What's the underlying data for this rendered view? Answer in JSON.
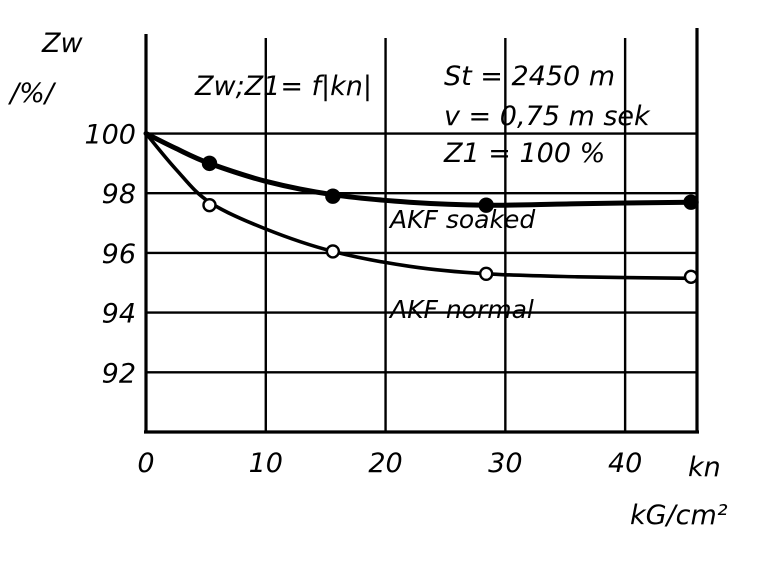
{
  "chart_data": {
    "type": "line",
    "title": "",
    "annotation_lines": [
      "Zw;Z1= f|kn|",
      "St = 2450 m",
      "v = 0,75 m sek",
      "Z1 = 100 %"
    ],
    "ylabel": [
      "Zw",
      "/%/"
    ],
    "xlabel": [
      "kn",
      "kG/cm²"
    ],
    "x_ticks": [
      0,
      10,
      20,
      30,
      40
    ],
    "y_ticks": [
      92,
      94,
      96,
      98,
      100
    ],
    "xlim": [
      0,
      46
    ],
    "ylim": [
      90,
      103.2
    ],
    "grid": true,
    "series": [
      {
        "name": "AKF soaked",
        "marker": "filled-circle",
        "points": [
          [
            5.3,
            99.0
          ],
          [
            15.6,
            97.9
          ],
          [
            28.4,
            97.6
          ],
          [
            45.5,
            97.7
          ]
        ],
        "curve": [
          [
            0,
            100.0
          ],
          [
            2.5,
            99.5
          ],
          [
            5.3,
            99.0
          ],
          [
            10,
            98.4
          ],
          [
            15.6,
            97.95
          ],
          [
            22,
            97.7
          ],
          [
            28.4,
            97.6
          ],
          [
            36,
            97.65
          ],
          [
            45.5,
            97.7
          ]
        ]
      },
      {
        "name": "AKF normal",
        "marker": "open-circle",
        "points": [
          [
            5.3,
            97.6
          ],
          [
            15.6,
            96.05
          ],
          [
            28.4,
            95.3
          ],
          [
            45.5,
            95.2
          ]
        ],
        "curve": [
          [
            0,
            100.0
          ],
          [
            2.5,
            98.8
          ],
          [
            5.3,
            97.7
          ],
          [
            10,
            96.8
          ],
          [
            15.6,
            96.05
          ],
          [
            22,
            95.55
          ],
          [
            28.4,
            95.3
          ],
          [
            36,
            95.2
          ],
          [
            45.5,
            95.15
          ]
        ]
      }
    ]
  }
}
